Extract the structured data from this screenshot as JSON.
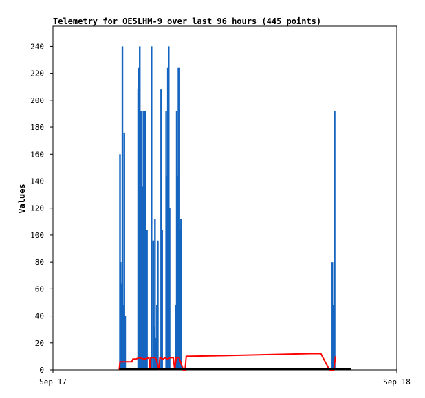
{
  "chart_data": {
    "type": "line",
    "title": "Telemetry for OE5LHM-9 over last 96 hours (445 points)",
    "xlabel": "",
    "ylabel": "Values",
    "x_tick_labels": [
      "Sep 17",
      "Sep 18"
    ],
    "xlim_hours": [
      0,
      24
    ],
    "ylim": [
      0,
      255
    ],
    "y_ticks": [
      0,
      20,
      40,
      60,
      80,
      100,
      120,
      140,
      160,
      180,
      200,
      220,
      240
    ],
    "grid": false,
    "legend": "none",
    "colors": {
      "blue": "#1565c0",
      "red": "#ff0000",
      "black": "#000000"
    },
    "series": [
      {
        "color": "blue",
        "style": "spikes",
        "points": [
          [
            4.68,
            160
          ],
          [
            4.72,
            80
          ],
          [
            4.78,
            64
          ],
          [
            4.85,
            240
          ],
          [
            4.92,
            48
          ],
          [
            4.98,
            176
          ],
          [
            5.04,
            40
          ],
          [
            5.95,
            208
          ],
          [
            6.0,
            224
          ],
          [
            6.06,
            240
          ],
          [
            6.14,
            192
          ],
          [
            6.2,
            96
          ],
          [
            6.26,
            136
          ],
          [
            6.32,
            192
          ],
          [
            6.38,
            128
          ],
          [
            6.44,
            192
          ],
          [
            6.5,
            64
          ],
          [
            6.56,
            104
          ],
          [
            6.88,
            240
          ],
          [
            7.0,
            96
          ],
          [
            7.06,
            32
          ],
          [
            7.12,
            112
          ],
          [
            7.2,
            24
          ],
          [
            7.26,
            48
          ],
          [
            7.32,
            96
          ],
          [
            7.55,
            208
          ],
          [
            7.62,
            104
          ],
          [
            7.9,
            192
          ],
          [
            7.96,
            144
          ],
          [
            8.02,
            224
          ],
          [
            8.08,
            240
          ],
          [
            8.14,
            120
          ],
          [
            8.58,
            48
          ],
          [
            8.64,
            192
          ],
          [
            8.7,
            144
          ],
          [
            8.76,
            224
          ],
          [
            8.82,
            224
          ],
          [
            8.88,
            104
          ],
          [
            8.94,
            112
          ],
          [
            19.5,
            80
          ],
          [
            19.58,
            48
          ],
          [
            19.66,
            192
          ]
        ]
      },
      {
        "color": "red",
        "style": "line",
        "points": [
          [
            4.62,
            0
          ],
          [
            4.68,
            6
          ],
          [
            5.5,
            6
          ],
          [
            5.58,
            8
          ],
          [
            5.8,
            8
          ],
          [
            6.0,
            9
          ],
          [
            6.4,
            8
          ],
          [
            6.7,
            9
          ],
          [
            6.78,
            0
          ],
          [
            6.82,
            9
          ],
          [
            7.1,
            9
          ],
          [
            7.2,
            8
          ],
          [
            7.4,
            0
          ],
          [
            7.46,
            9
          ],
          [
            7.7,
            8
          ],
          [
            7.8,
            9
          ],
          [
            8.0,
            8
          ],
          [
            8.2,
            9
          ],
          [
            8.4,
            9
          ],
          [
            8.5,
            0
          ],
          [
            8.6,
            9
          ],
          [
            8.8,
            9
          ],
          [
            9.1,
            0
          ],
          [
            9.22,
            0
          ],
          [
            9.3,
            10
          ],
          [
            12.0,
            10.5
          ],
          [
            18.0,
            12
          ],
          [
            18.7,
            12
          ],
          [
            19.3,
            0
          ],
          [
            19.6,
            0
          ],
          [
            19.72,
            10
          ]
        ]
      },
      {
        "color": "black",
        "style": "line",
        "points": [
          [
            4.62,
            0.5
          ],
          [
            20.8,
            0.5
          ]
        ]
      }
    ]
  }
}
